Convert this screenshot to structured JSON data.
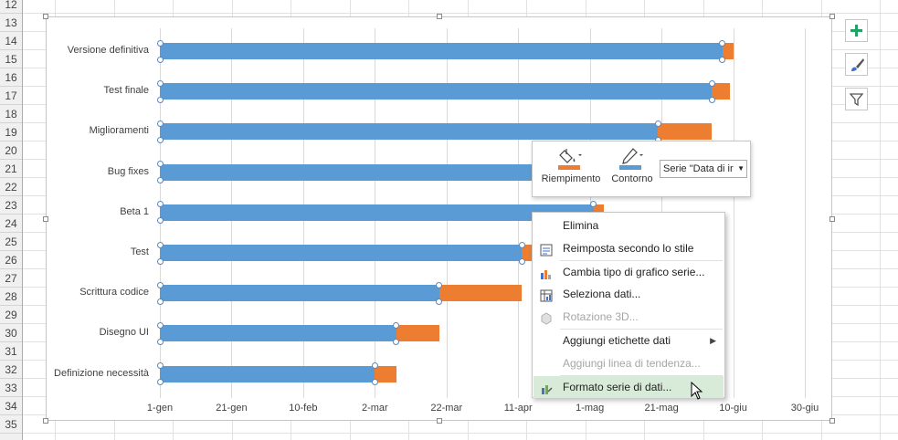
{
  "spreadsheet": {
    "row_numbers": [
      "12",
      "13",
      "14",
      "15",
      "16",
      "17",
      "18",
      "19",
      "20",
      "21",
      "22",
      "23",
      "24",
      "25",
      "26",
      "27",
      "28",
      "29",
      "30",
      "31",
      "32",
      "33",
      "34",
      "35"
    ]
  },
  "chart_data": {
    "type": "bar",
    "orientation": "horizontal-stacked",
    "categories": [
      "Versione definitiva",
      "Test finale",
      "Miglioramenti",
      "Bug fixes",
      "Beta 1",
      "Test",
      "Scrittura codice",
      "Disegno UI",
      "Definizione necessità"
    ],
    "series": [
      {
        "name": "Data di inizio",
        "color": "#5b9bd5",
        "start": "2014-01-01",
        "values": [
          157,
          154,
          139,
          110,
          121,
          101,
          78,
          66,
          60
        ]
      },
      {
        "name": "",
        "color": "#ed7d31",
        "values": [
          3,
          5,
          15,
          18,
          3,
          6,
          23,
          12,
          6
        ]
      }
    ],
    "x_ticks": [
      "1-gen",
      "21-gen",
      "10-feb",
      "2-mar",
      "22-mar",
      "11-apr",
      "1-mag",
      "21-mag",
      "10-giu",
      "30-giu"
    ],
    "x_tick_days": [
      0,
      20,
      40,
      60,
      80,
      100,
      120,
      140,
      160,
      180
    ],
    "xlim": [
      0,
      180
    ],
    "grid": true,
    "title": "",
    "xlabel": "",
    "ylabel": ""
  },
  "side_buttons": [
    {
      "name": "chart-elements-button",
      "icon": "plus-icon"
    },
    {
      "name": "chart-styles-button",
      "icon": "brush-icon"
    },
    {
      "name": "chart-filters-button",
      "icon": "filter-icon"
    }
  ],
  "mini_toolbar": {
    "fill_label": "Riempimento",
    "outline_label": "Contorno",
    "series_selector_value": "Serie \"Data di ir"
  },
  "context_menu": {
    "items": [
      {
        "label": "Elimina",
        "icon": "",
        "enabled": true
      },
      {
        "label": "Reimposta secondo lo stile",
        "icon": "reset-style-icon",
        "enabled": true
      },
      {
        "label": "Cambia tipo di grafico serie...",
        "icon": "chart-type-icon",
        "enabled": true
      },
      {
        "label": "Seleziona dati...",
        "icon": "select-data-icon",
        "enabled": true
      },
      {
        "label": "Rotazione 3D...",
        "icon": "rotation-3d-icon",
        "enabled": false
      },
      {
        "label": "Aggiungi etichette dati",
        "icon": "",
        "enabled": true,
        "submenu": true
      },
      {
        "label": "Aggiungi linea di tendenza...",
        "icon": "",
        "enabled": false
      },
      {
        "label": "Formato serie di dati...",
        "icon": "format-series-icon",
        "enabled": true,
        "highlighted": true
      }
    ]
  },
  "colors": {
    "accent_green": "#21a366",
    "highlight": "#d7ebd8"
  }
}
